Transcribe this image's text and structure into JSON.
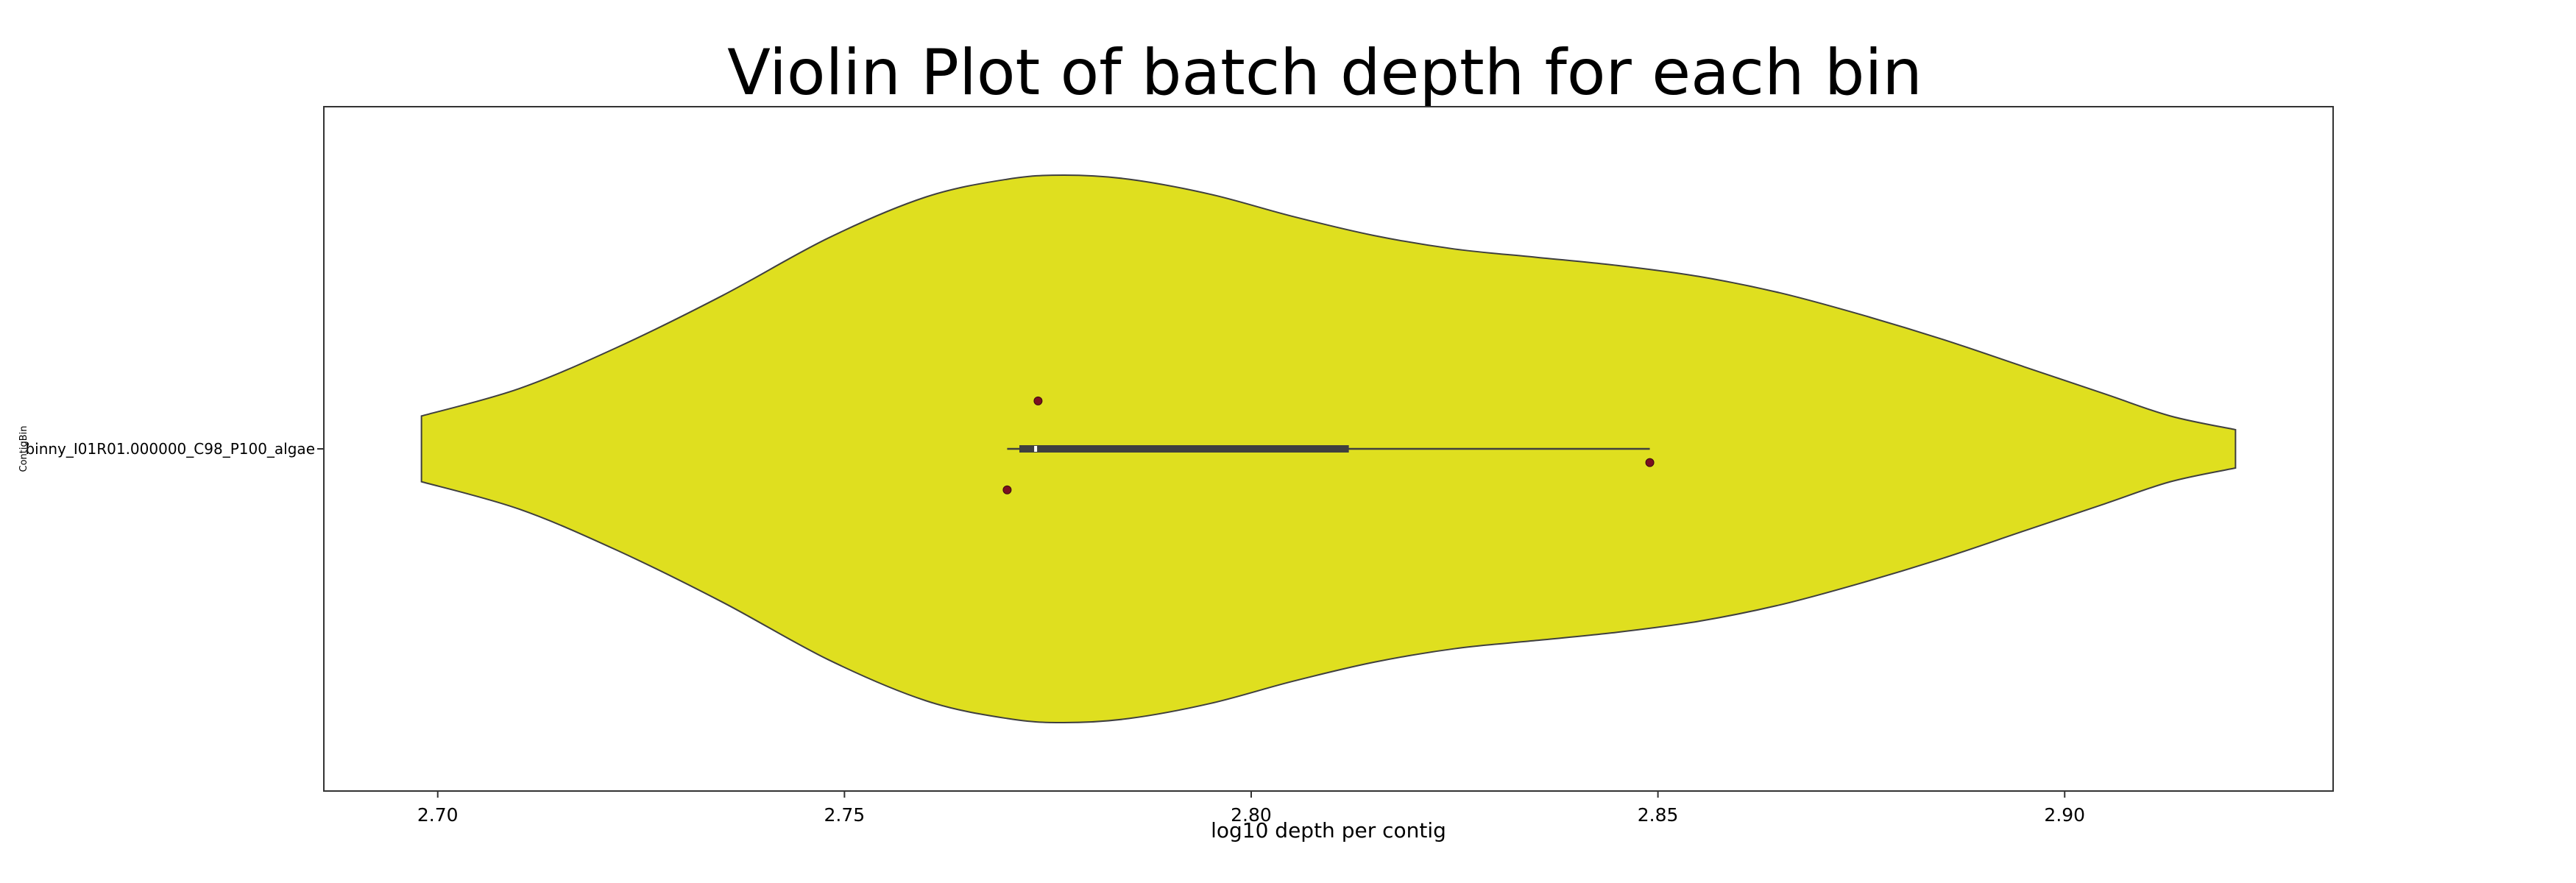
{
  "chart_data": {
    "type": "violin",
    "title": "Violin Plot of batch depth for each bin",
    "xlabel": "log10 depth per contig",
    "ylabel": "ContigBin",
    "xlim": [
      2.686,
      2.933
    ],
    "xticks": [
      "2.70",
      "2.75",
      "2.80",
      "2.85",
      "2.90"
    ],
    "xtick_values": [
      2.7,
      2.75,
      2.8,
      2.85,
      2.9
    ],
    "grid": false,
    "categories": [
      "binny_I01R01.000000_C98_P100_algae"
    ],
    "violins": [
      {
        "category": "binny_I01R01.000000_C98_P100_algae",
        "fill_color": "#dfdf1f",
        "edge_color": "#3f3f3f",
        "density_profile": {
          "x": [
            2.698,
            2.71,
            2.722,
            2.735,
            2.748,
            2.76,
            2.77,
            2.777,
            2.785,
            2.795,
            2.805,
            2.815,
            2.825,
            2.835,
            2.845,
            2.855,
            2.865,
            2.875,
            2.885,
            2.895,
            2.905,
            2.913,
            2.921
          ],
          "relative_width": [
            0.12,
            0.22,
            0.37,
            0.56,
            0.77,
            0.92,
            0.985,
            1.0,
            0.985,
            0.93,
            0.85,
            0.78,
            0.73,
            0.7,
            0.67,
            0.63,
            0.57,
            0.49,
            0.4,
            0.3,
            0.2,
            0.12,
            0.07
          ]
        },
        "box": {
          "q1": 2.7715,
          "median": 2.7735,
          "q3": 2.812,
          "whisker_low": 2.77,
          "whisker_high": 2.849
        },
        "points": [
          {
            "x": 2.77,
            "jitter": 0.06,
            "color": "#7a1020"
          },
          {
            "x": 2.7738,
            "jitter": -0.07,
            "color": "#7a1020"
          },
          {
            "x": 2.849,
            "jitter": 0.02,
            "color": "#7a1020"
          }
        ]
      }
    ]
  }
}
